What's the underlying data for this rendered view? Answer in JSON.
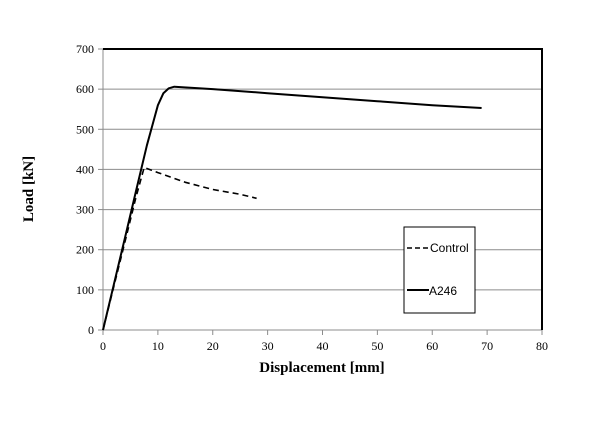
{
  "chart_data": {
    "type": "line",
    "title": "",
    "xlabel": "Displacement [mm]",
    "ylabel": "Load [kN]",
    "xlim": [
      0,
      80
    ],
    "ylim": [
      0,
      700
    ],
    "xticks": [
      0,
      10,
      20,
      30,
      40,
      50,
      60,
      70,
      80
    ],
    "yticks": [
      0,
      100,
      200,
      300,
      400,
      500,
      600,
      700
    ],
    "grid": "horizontal",
    "legend_position": "inside-right",
    "series": [
      {
        "name": "Control",
        "style": "dashed",
        "color": "#000000",
        "x": [
          0,
          2,
          4,
          6,
          7.5,
          10,
          15,
          20,
          25,
          28
        ],
        "y": [
          0,
          110,
          220,
          330,
          405,
          392,
          368,
          350,
          338,
          328
        ]
      },
      {
        "name": "A246",
        "style": "solid",
        "color": "#000000",
        "x": [
          0,
          2,
          4,
          6,
          8,
          10,
          11,
          12,
          13,
          20,
          30,
          40,
          50,
          60,
          69
        ],
        "y": [
          0,
          115,
          230,
          345,
          460,
          560,
          590,
          602,
          606,
          600,
          590,
          580,
          570,
          560,
          553
        ]
      }
    ]
  },
  "axes": {
    "x_title": "Displacement [mm]",
    "y_title": "Load [kN]",
    "x_tick_labels": [
      "0",
      "10",
      "20",
      "30",
      "40",
      "50",
      "60",
      "70",
      "80"
    ],
    "y_tick_labels": [
      "0",
      "100",
      "200",
      "300",
      "400",
      "500",
      "600",
      "700"
    ]
  },
  "legend": {
    "items": [
      {
        "label": "Control",
        "style": "dashed"
      },
      {
        "label": "A246",
        "style": "solid"
      }
    ]
  },
  "colors": {
    "grid": "#8c8c8c",
    "series": "#000000",
    "frame": "#000000"
  }
}
